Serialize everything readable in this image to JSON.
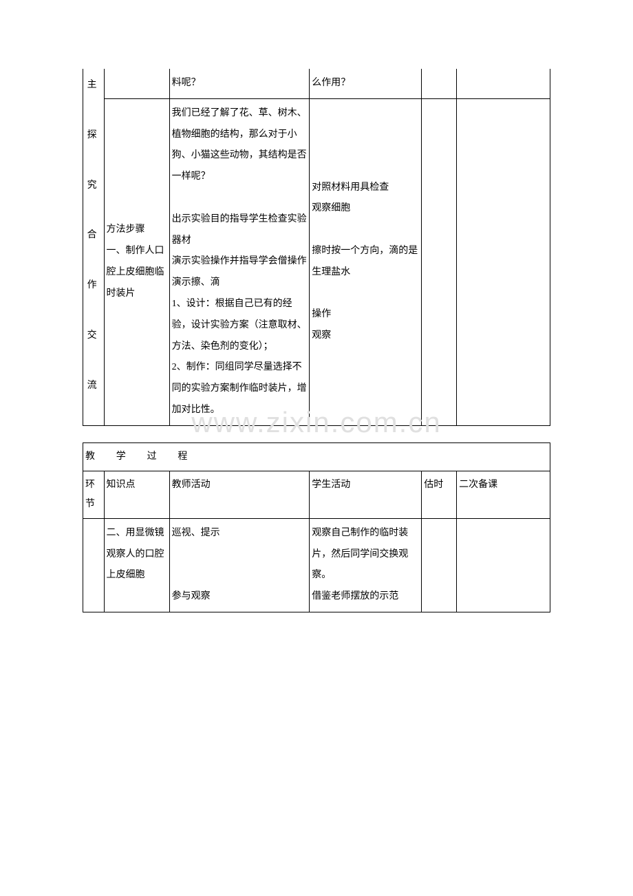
{
  "watermark": "www.zixin.com.cn",
  "table1": {
    "col1_text": "主\n\n探\n\n究\n\n合\n\n作\n\n交\n\n流",
    "r1c3": "料呢？",
    "r1c4": "么作用？",
    "r2c2": "方法步骤\n一、制作人口腔上皮细胞临时装片",
    "r2c3": "我们已经了解了花、草、树木、植物细胞的结构，那么对于小狗、小猫这些动物，其结构是否一样呢？\n\n出示实验目的指导学生检查实验器材\n演示实验操作并指导学会僧操作\n演示擦、滴\n1、设计：根据自己已有的经验，设计实验方案（注意取材、方法、染色剂的变化）；\n2、制作：同组同学尽量选择不同的实验方案制作临时装片，增加对比性。",
    "r2c4": "对照材料用具检查\n观察细胞\n\n擦时按一个方向，滴的是生理盐水\n\n操作\n观察"
  },
  "table2": {
    "header": "教　学　过　程",
    "col_headers": [
      "环节",
      "知识点",
      "教师活动",
      "学生活动",
      "估时",
      "二次备课"
    ],
    "r1c2": "二、用显微镜观察人的口腔上皮细胞",
    "r1c3": "巡视、提示\n\n\n参与观察",
    "r1c4": "观察自己制作的临时装片，然后同学间交换观察。\n借鉴老师摆放的示范"
  }
}
